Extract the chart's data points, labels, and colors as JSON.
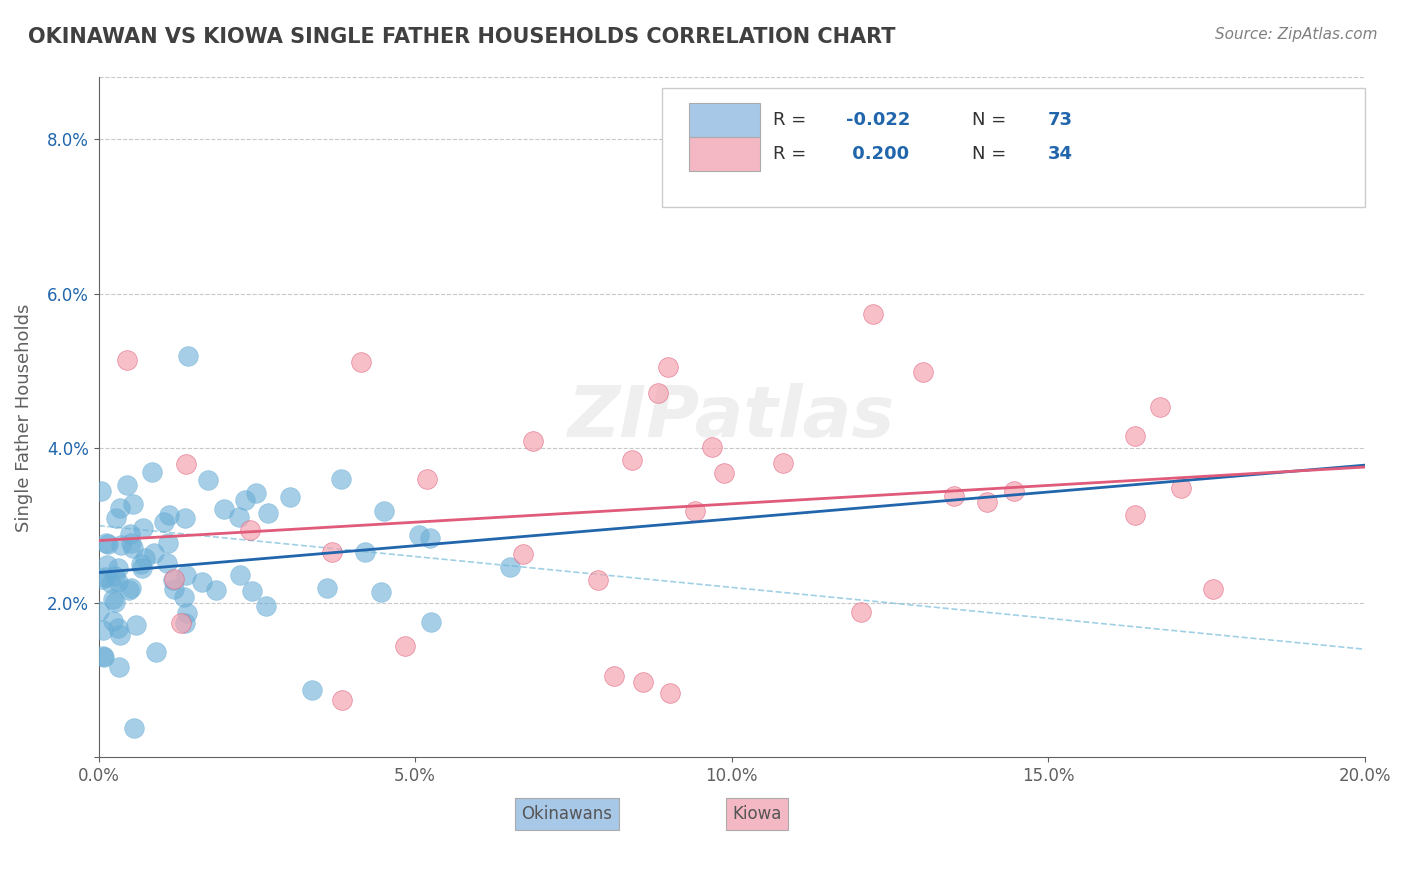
{
  "title": "OKINAWAN VS KIOWA SINGLE FATHER HOUSEHOLDS CORRELATION CHART",
  "source": "Source: ZipAtlas.com",
  "ylabel": "Single Father Households",
  "xlim": [
    0.0,
    0.2
  ],
  "ylim": [
    0.0,
    0.088
  ],
  "xticks": [
    0.0,
    0.05,
    0.1,
    0.15,
    0.2
  ],
  "xtick_labels": [
    "0.0%",
    "5.0%",
    "10.0%",
    "15.0%",
    "20.0%"
  ],
  "yticks": [
    0.0,
    0.02,
    0.04,
    0.06,
    0.08
  ],
  "ytick_labels": [
    "",
    "2.0%",
    "4.0%",
    "6.0%",
    "8.0%"
  ],
  "okinawan_R": -0.022,
  "okinawan_N": 73,
  "kiowa_R": 0.2,
  "kiowa_N": 34,
  "blue_dot_color": "#6baed6",
  "pink_dot_color": "#f4a4b0",
  "blue_line_color": "#2166ac",
  "pink_line_color": "#e05a7a",
  "blue_legend_color": "#a8c8e8",
  "pink_legend_color": "#f4b8c4",
  "blue_val_color": "#2166ac",
  "dashed_line_color": "#90c8e0",
  "watermark": "ZIPatlas",
  "legend_label_blue": "Okinawans",
  "legend_label_pink": "Kiowa",
  "background_color": "#ffffff",
  "grid_color": "#c8c8c8",
  "title_color": "#404040",
  "axis_color": "#606060",
  "okinawan_seed": 42,
  "kiowa_seed": 7
}
